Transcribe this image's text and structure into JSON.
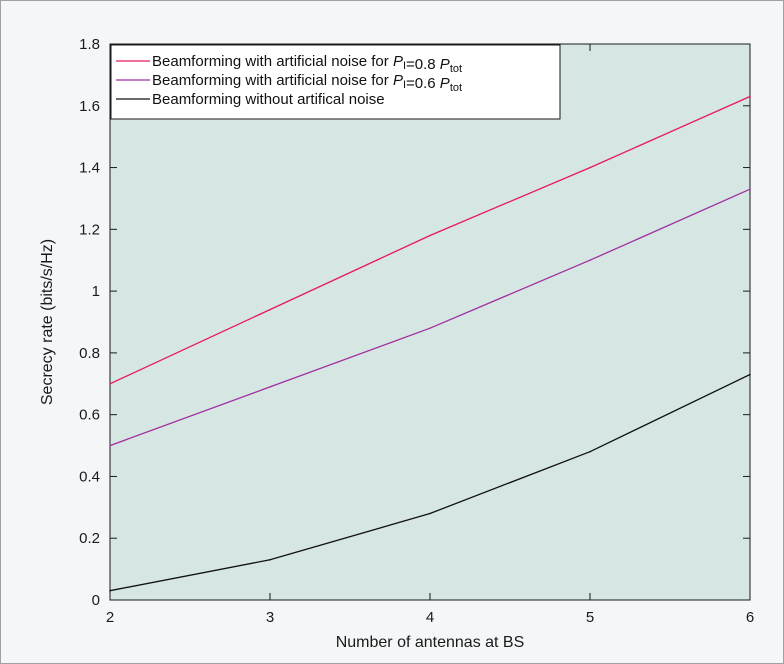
{
  "chart_data": {
    "type": "line",
    "title": "",
    "xlabel": "Number of antennas at BS",
    "ylabel": "Secrecy rate (bits/s/Hz)",
    "x": [
      2,
      3,
      4,
      5,
      6
    ],
    "xlim": [
      2,
      6
    ],
    "ylim": [
      0,
      1.8
    ],
    "xticks": [
      "2",
      "3",
      "4",
      "5",
      "6"
    ],
    "yticks": [
      "0",
      "0.2",
      "0.4",
      "0.6",
      "0.8",
      "1",
      "1.2",
      "1.4",
      "1.6",
      "1.8"
    ],
    "grid": false,
    "legend_position": "top-left",
    "plot_background": "#d6e6e3",
    "series": [
      {
        "name": "Beamforming with artificial noise for P_I=0.8 P_tot",
        "legend_prefix": "Beamforming with artificial noise for ",
        "legend_var": "P",
        "legend_var_sub": "I",
        "legend_mid": "=0.8 ",
        "legend_var2": "P",
        "legend_var2_sub": "tot",
        "color": "#e8175d",
        "values": [
          0.7,
          0.94,
          1.18,
          1.4,
          1.63
        ]
      },
      {
        "name": "Beamforming with artificial noise for P_I=0.6 P_tot",
        "legend_prefix": "Beamforming with artificial noise for ",
        "legend_var": "P",
        "legend_var_sub": "I",
        "legend_mid": "=0.6 ",
        "legend_var2": "P",
        "legend_var2_sub": "tot",
        "color": "#a02fa0",
        "values": [
          0.5,
          0.69,
          0.88,
          1.1,
          1.33
        ]
      },
      {
        "name": "Beamforming without artifical noise",
        "legend_prefix": "Beamforming without artifical noise",
        "color": "#111111",
        "values": [
          0.03,
          0.13,
          0.28,
          0.48,
          0.73
        ]
      }
    ]
  }
}
